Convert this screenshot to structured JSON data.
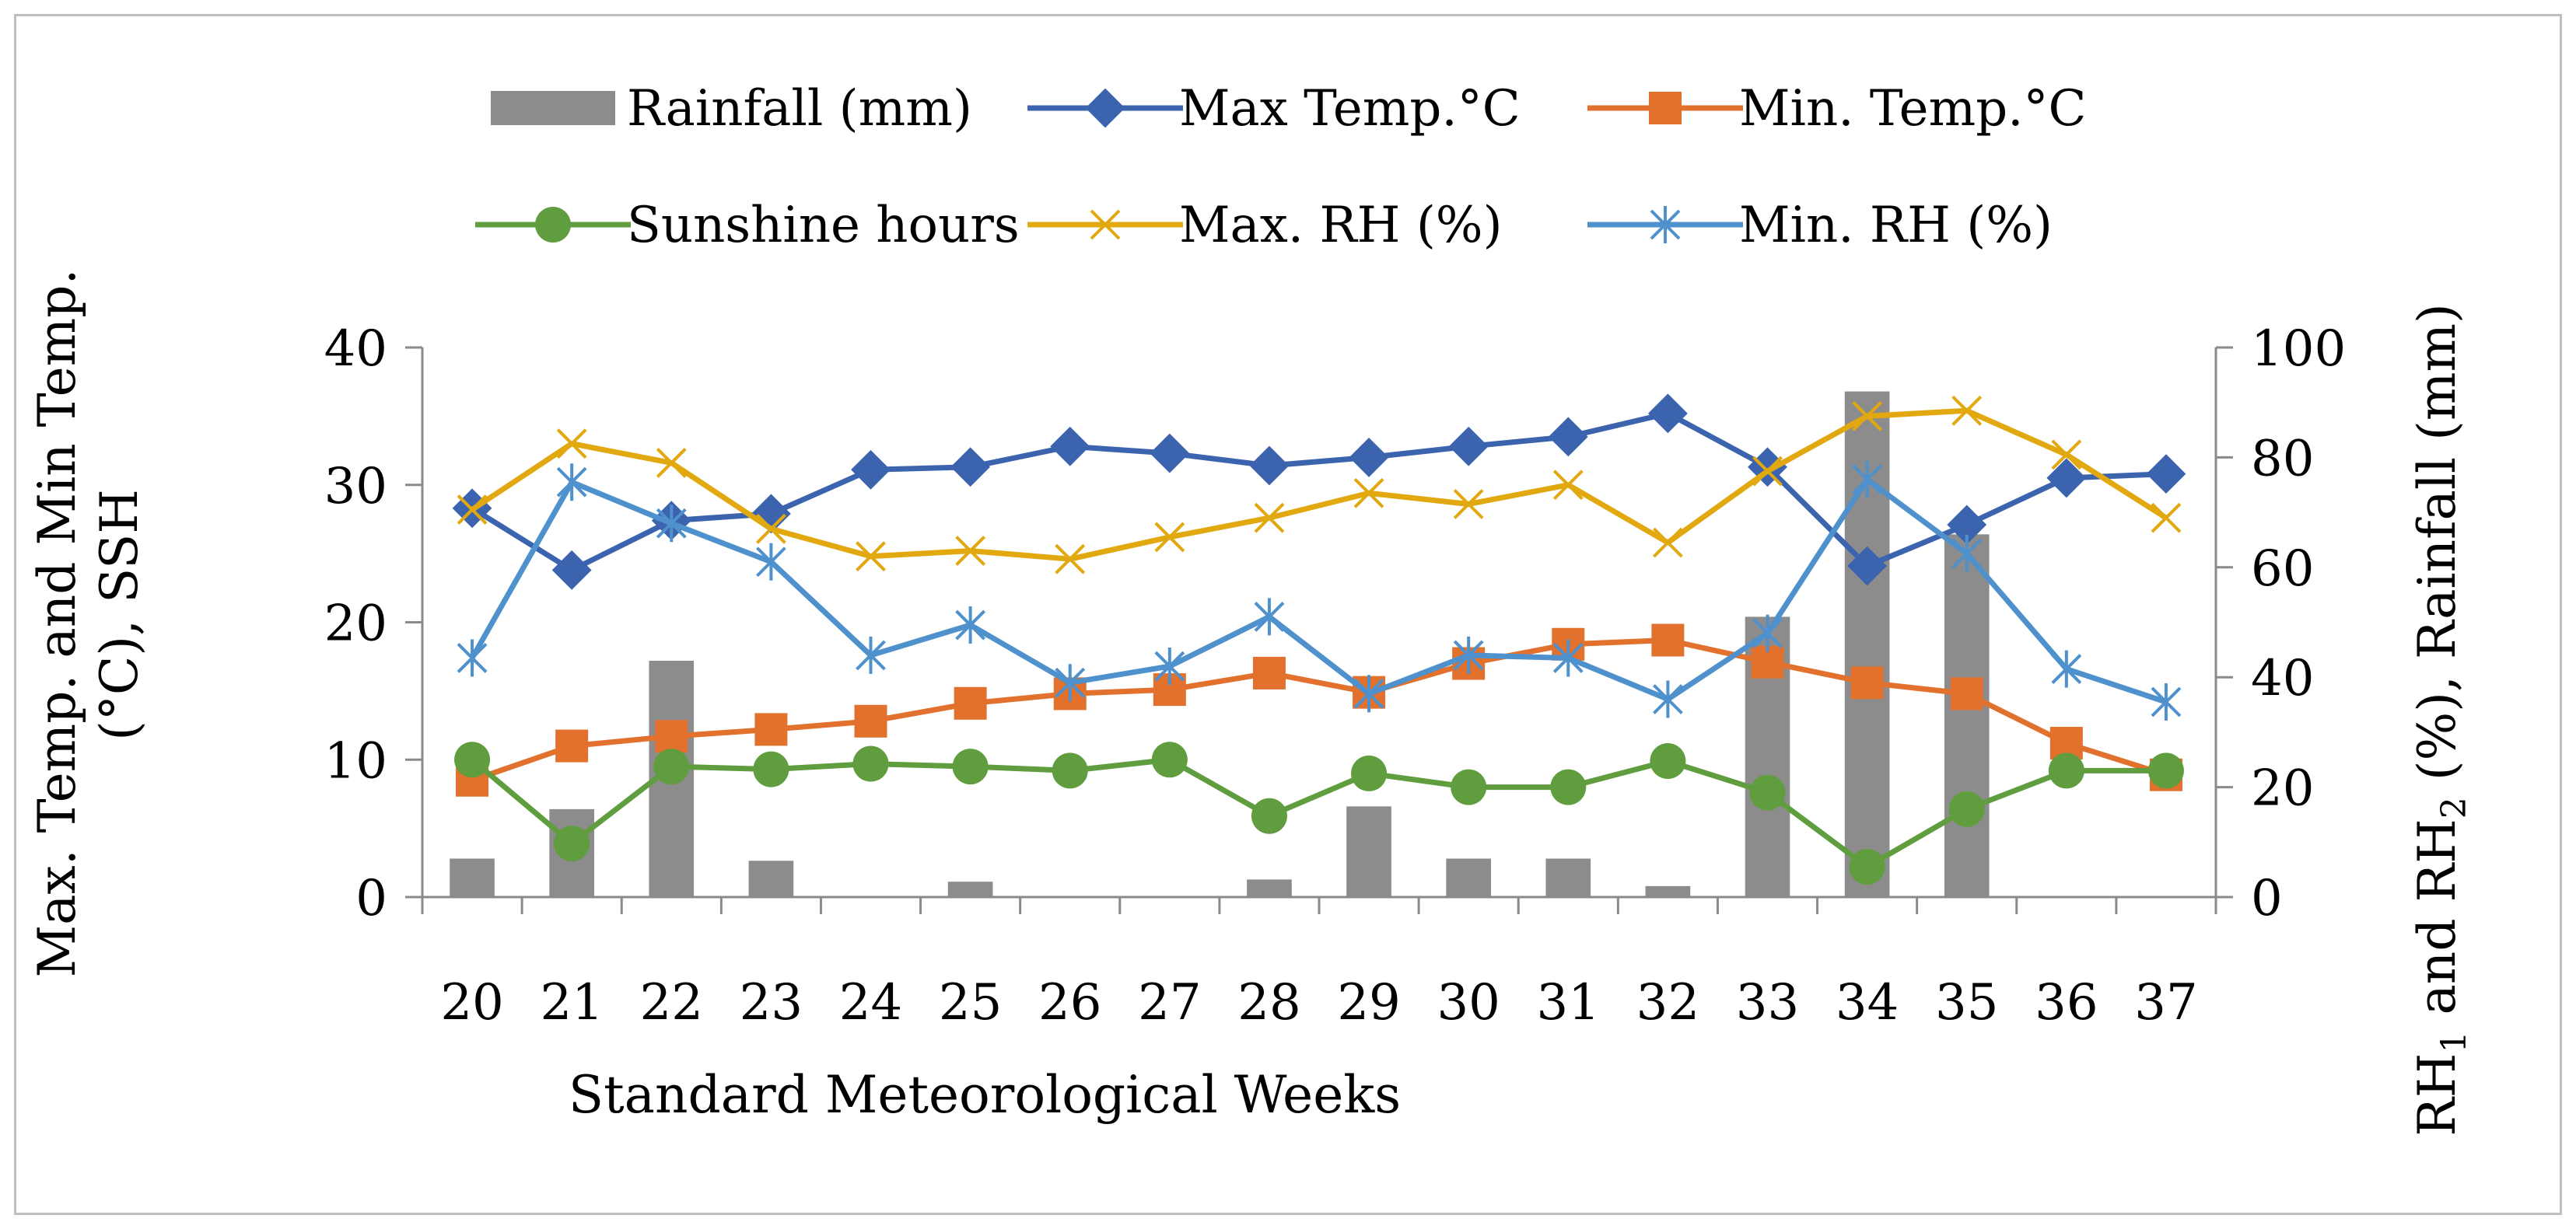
{
  "chart_data": {
    "type": "bar+line",
    "title": "",
    "xlabel": "Standard Meteorological Weeks",
    "ylabel_left": "Max. Temp. and Min Temp. (°C), SSH",
    "ylabel_left_lines": [
      "Max. Temp. and Min Temp.",
      "(°C), SSH"
    ],
    "ylabel_right": "RH1 and RH2 (%), Rainfall (mm)",
    "ylabel_right_parts": [
      "RH",
      "1",
      " and RH",
      "2",
      " (%), Rainfall (mm)"
    ],
    "ylim_left": [
      0,
      40
    ],
    "ylim_right": [
      0,
      100
    ],
    "yticks_left": [
      "0",
      "10",
      "20",
      "30",
      "40"
    ],
    "yticks_right": [
      "0",
      "20",
      "40",
      "60",
      "80",
      "100"
    ],
    "categories": [
      "20",
      "21",
      "22",
      "23",
      "24",
      "25",
      "26",
      "27",
      "28",
      "29",
      "30",
      "31",
      "32",
      "33",
      "34",
      "35",
      "36",
      "37"
    ],
    "grid": false,
    "legend_position": "top",
    "series": [
      {
        "name": "Rainfall (mm)",
        "type": "bar",
        "axis": "right",
        "color": "#8c8c8c",
        "values": [
          7,
          16,
          43,
          6.6,
          0,
          2.8,
          0,
          0,
          3.2,
          16.5,
          7,
          7,
          2,
          51,
          92,
          66,
          0,
          0
        ]
      },
      {
        "name": "Max Temp.°C",
        "type": "line",
        "axis": "left",
        "color": "#3c64ae",
        "marker": "diamond",
        "values": [
          28.3,
          23.8,
          27.4,
          27.9,
          31.1,
          31.3,
          32.8,
          32.3,
          31.4,
          32.0,
          32.8,
          33.5,
          35.2,
          31.3,
          24.1,
          27.1,
          30.5,
          30.8
        ]
      },
      {
        "name": "Min. Temp.°C",
        "type": "line",
        "axis": "left",
        "color": "#e1712d",
        "marker": "square",
        "values": [
          8.5,
          11.0,
          11.7,
          12.2,
          12.8,
          14.1,
          14.8,
          15.1,
          16.3,
          14.9,
          17.0,
          18.4,
          18.7,
          17.1,
          15.6,
          14.8,
          11.2,
          8.9
        ]
      },
      {
        "name": "Sunshine hours",
        "type": "line",
        "axis": "left",
        "color": "#5f9d3f",
        "marker": "circle",
        "values": [
          10.0,
          3.9,
          9.5,
          9.3,
          9.7,
          9.5,
          9.2,
          10.0,
          5.9,
          9.0,
          8.0,
          8.0,
          9.9,
          7.6,
          2.2,
          6.4,
          9.2,
          9.2
        ]
      },
      {
        "name": "Max. RH (%)",
        "type": "line",
        "axis": "right",
        "color": "#e2a810",
        "marker": "x",
        "values": [
          70.5,
          82.5,
          79,
          67,
          62,
          63,
          61.5,
          65.5,
          69,
          73.5,
          71.5,
          75,
          64.5,
          77.5,
          87.5,
          88.5,
          80.5,
          69
        ]
      },
      {
        "name": "Min. RH (%)",
        "type": "line",
        "axis": "right",
        "color": "#4e91cc",
        "marker": "asterisk",
        "values": [
          43.5,
          75.5,
          68,
          61,
          44,
          49.5,
          39,
          42,
          51,
          37,
          44,
          43.5,
          36,
          48,
          76,
          62.5,
          41.5,
          35.5
        ]
      }
    ]
  }
}
